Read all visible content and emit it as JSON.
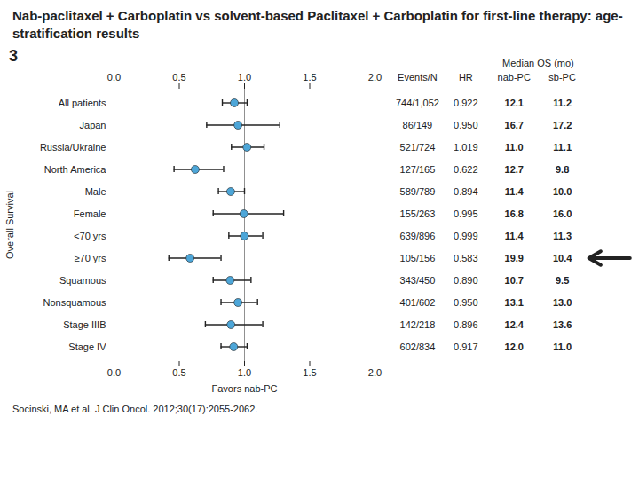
{
  "chart_data": {
    "type": "forest",
    "title": "Nab-paclitaxel + Carboplatin vs solvent-based Paclitaxel + Carboplatin for first-line therapy: age-stratification results",
    "ylabel": "Overall Survival",
    "xlabel": "Favors nab-PC",
    "figure_label": "3",
    "caption": "Socinski, MA et al. J Clin Oncol. 2012;30(17):2055-2062.",
    "categories": [
      "All patients",
      "Japan",
      "Russia/Ukraine",
      "North America",
      "Male",
      "Female",
      "<70 yrs",
      "≥70 yrs",
      "Squamous",
      "Nonsquamous",
      "Stage IIIB",
      "Stage IV"
    ],
    "values": [
      0.922,
      0.95,
      1.019,
      0.622,
      0.894,
      0.995,
      0.999,
      0.583,
      0.89,
      0.95,
      0.896,
      0.917
    ],
    "ci_low": [
      0.83,
      0.71,
      0.9,
      0.46,
      0.8,
      0.76,
      0.88,
      0.42,
      0.76,
      0.82,
      0.7,
      0.82
    ],
    "ci_high": [
      1.02,
      1.27,
      1.15,
      0.84,
      1.0,
      1.3,
      1.14,
      0.82,
      1.05,
      1.1,
      1.14,
      1.02
    ],
    "color": "#4da6d8",
    "reference_line": 1.0,
    "xlim": [
      0.0,
      2.0
    ],
    "xticks": [
      {
        "value": 0.0,
        "label": "0.0"
      },
      0.5,
      {
        "value": 1.0,
        "label": "1.0"
      },
      1.5,
      {
        "value": 2.0,
        "label": "2.0"
      }
    ],
    "grid": false,
    "table": {
      "columns": [
        {
          "name": "Events/N",
          "values": [
            "744/1,052",
            "86/149",
            "521/724",
            "127/165",
            "589/789",
            "155/263",
            "639/896",
            "105/156",
            "343/450",
            "401/602",
            "142/218",
            "602/834"
          ]
        },
        {
          "name": "HR",
          "values": [
            "0.922",
            "0.950",
            "1.019",
            "0.622",
            "0.894",
            "0.995",
            "0.999",
            "0.583",
            "0.890",
            "0.950",
            "0.896",
            "0.917"
          ]
        }
      ],
      "group": {
        "name": "Median OS (mo)",
        "columns": [
          {
            "name": "nab-PC",
            "values": [
              "12.1",
              "16.7",
              "11.0",
              "12.7",
              "11.4",
              "16.8",
              "11.4",
              "19.9",
              "10.7",
              "13.1",
              "12.4",
              "12.0"
            ]
          },
          {
            "name": "sb-PC",
            "values": [
              "11.2",
              "17.2",
              "11.1",
              "9.8",
              "10.0",
              "16.0",
              "11.3",
              "10.4",
              "9.5",
              "13.0",
              "13.6",
              "11.0"
            ]
          }
        ]
      }
    },
    "highlight": "≥70 yrs"
  }
}
